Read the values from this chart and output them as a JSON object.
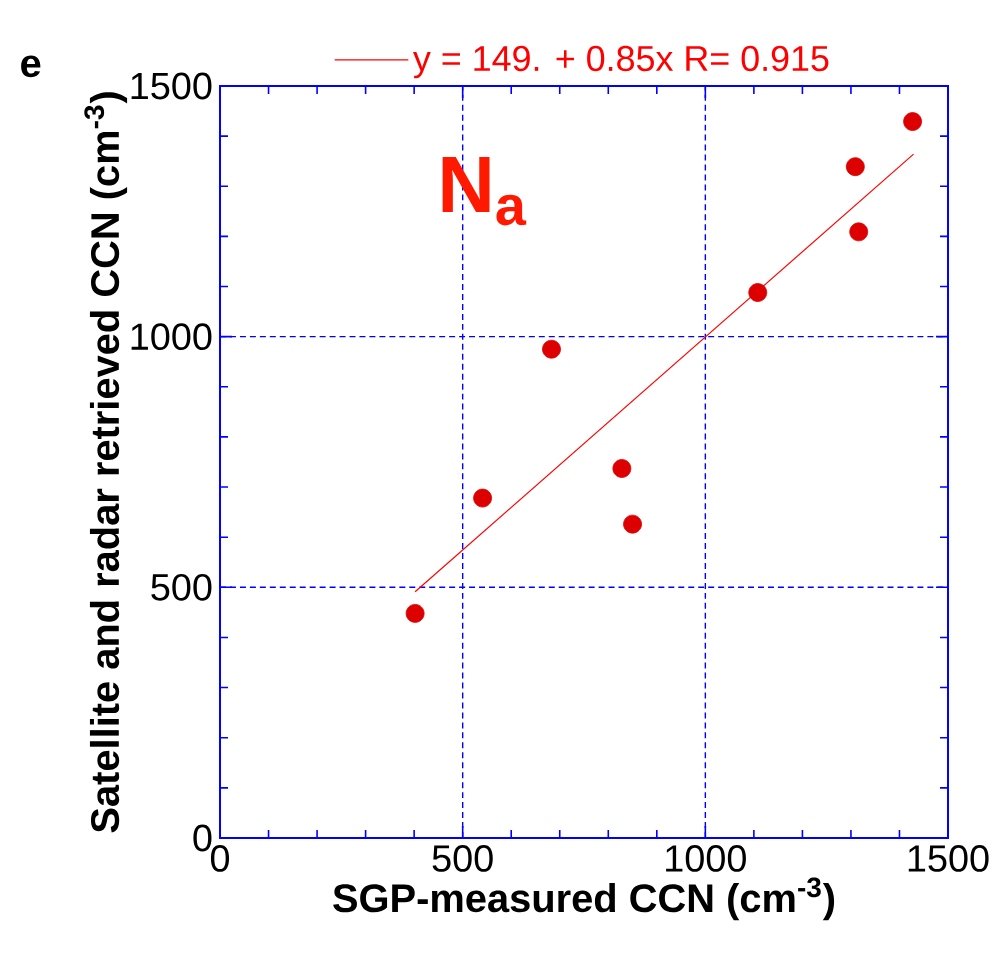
{
  "chart_data": {
    "type": "scatter",
    "xlabel": "SGP-measured CCN (cm$^{-3}$)",
    "ylabel": "Satellite and radar retrieved CCN (cm$^{-3}$)",
    "annotations": [
      "N$_{a}$",
      "e"
    ],
    "xlim": [
      0,
      1500
    ],
    "ylim": [
      0,
      1500
    ],
    "xticks": [
      0,
      500,
      1000,
      1500
    ],
    "yticks": [
      0,
      500,
      1000,
      1500
    ],
    "grid": true,
    "legend": "top",
    "marker": "circle",
    "series": [
      {
        "color": "#dd0000",
        "x": [
          402,
          541,
          683,
          828,
          850,
          1108,
          1309,
          1316,
          1427
        ],
        "values": [
          448,
          678,
          975,
          737,
          626,
          1088,
          1339,
          1209,
          1429
        ]
      },
      {
        "type": "line",
        "name": "y = 149. + 0.85x   R= 0.915",
        "color": "#ff0000",
        "x": [
          402,
          1429
        ],
        "values": [
          491,
          1364
        ],
        "marker": "none",
        "line_style": "solid"
      }
    ]
  }
}
